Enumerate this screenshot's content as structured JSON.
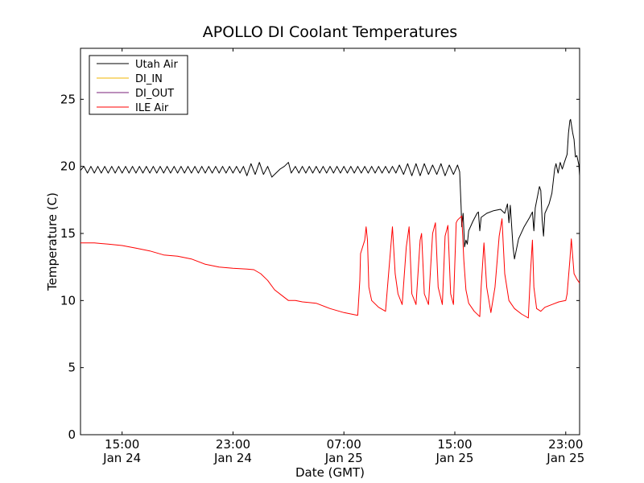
{
  "chart_data": {
    "type": "line",
    "title": "APOLLO DI Coolant Temperatures",
    "xlabel": "Date (GMT)",
    "ylabel": "Temperature (C)",
    "x_unit": "hours since Jan 24 12:00 GMT",
    "xlim": [
      0,
      36
    ],
    "ylim": [
      0,
      28.8
    ],
    "yticks": [
      0,
      5,
      10,
      15,
      20,
      25
    ],
    "xticks": [
      {
        "x": 3,
        "time": "15:00",
        "date": "Jan 24"
      },
      {
        "x": 11,
        "time": "23:00",
        "date": "Jan 24"
      },
      {
        "x": 19,
        "time": "07:00",
        "date": "Jan 25"
      },
      {
        "x": 27,
        "time": "15:00",
        "date": "Jan 25"
      },
      {
        "x": 35,
        "time": "23:00",
        "date": "Jan 25"
      }
    ],
    "legend_position": "top-left",
    "series": [
      {
        "name": "Utah Air",
        "color": "#000000",
        "points": [
          [
            0,
            19.7
          ],
          [
            0.25,
            20.0
          ],
          [
            0.5,
            19.5
          ],
          [
            0.75,
            20.0
          ],
          [
            1,
            19.5
          ],
          [
            1.25,
            20.0
          ],
          [
            1.5,
            19.5
          ],
          [
            1.75,
            20.0
          ],
          [
            2,
            19.5
          ],
          [
            2.25,
            20.0
          ],
          [
            2.5,
            19.5
          ],
          [
            2.75,
            20.0
          ],
          [
            3,
            19.5
          ],
          [
            3.25,
            20.0
          ],
          [
            3.5,
            19.5
          ],
          [
            3.75,
            20.0
          ],
          [
            4,
            19.5
          ],
          [
            4.25,
            20.0
          ],
          [
            4.5,
            19.5
          ],
          [
            4.75,
            20.0
          ],
          [
            5,
            19.5
          ],
          [
            5.25,
            20.0
          ],
          [
            5.5,
            19.5
          ],
          [
            5.75,
            20.0
          ],
          [
            6,
            19.5
          ],
          [
            6.25,
            20.0
          ],
          [
            6.5,
            19.5
          ],
          [
            6.75,
            20.0
          ],
          [
            7,
            19.5
          ],
          [
            7.25,
            20.0
          ],
          [
            7.5,
            19.5
          ],
          [
            7.75,
            20.0
          ],
          [
            8,
            19.5
          ],
          [
            8.25,
            20.0
          ],
          [
            8.5,
            19.5
          ],
          [
            8.75,
            20.0
          ],
          [
            9,
            19.5
          ],
          [
            9.25,
            20.0
          ],
          [
            9.5,
            19.5
          ],
          [
            9.75,
            20.0
          ],
          [
            10,
            19.5
          ],
          [
            10.25,
            20.0
          ],
          [
            10.5,
            19.5
          ],
          [
            10.75,
            20.0
          ],
          [
            11,
            19.5
          ],
          [
            11.25,
            20.0
          ],
          [
            11.5,
            19.5
          ],
          [
            11.75,
            20.0
          ],
          [
            12,
            19.3
          ],
          [
            12.3,
            20.2
          ],
          [
            12.6,
            19.4
          ],
          [
            12.9,
            20.3
          ],
          [
            13.2,
            19.4
          ],
          [
            13.5,
            20.0
          ],
          [
            13.8,
            19.2
          ],
          [
            14.1,
            19.5
          ],
          [
            14.4,
            19.8
          ],
          [
            14.7,
            20.0
          ],
          [
            15,
            20.3
          ],
          [
            15.2,
            19.5
          ],
          [
            15.5,
            20.0
          ],
          [
            15.75,
            19.5
          ],
          [
            16,
            20.0
          ],
          [
            16.25,
            19.5
          ],
          [
            16.5,
            20.0
          ],
          [
            16.75,
            19.5
          ],
          [
            17,
            20.0
          ],
          [
            17.25,
            19.5
          ],
          [
            17.5,
            20.0
          ],
          [
            17.75,
            19.5
          ],
          [
            18,
            20.0
          ],
          [
            18.25,
            19.5
          ],
          [
            18.5,
            20.0
          ],
          [
            18.75,
            19.5
          ],
          [
            19,
            20.0
          ],
          [
            19.25,
            19.5
          ],
          [
            19.5,
            20.0
          ],
          [
            19.75,
            19.5
          ],
          [
            20,
            20.0
          ],
          [
            20.25,
            19.5
          ],
          [
            20.5,
            20.0
          ],
          [
            20.75,
            19.5
          ],
          [
            21,
            20.0
          ],
          [
            21.25,
            19.5
          ],
          [
            21.5,
            20.0
          ],
          [
            21.75,
            19.5
          ],
          [
            22,
            20.0
          ],
          [
            22.25,
            19.5
          ],
          [
            22.5,
            20.0
          ],
          [
            22.75,
            19.5
          ],
          [
            23,
            20.1
          ],
          [
            23.3,
            19.4
          ],
          [
            23.6,
            20.2
          ],
          [
            23.9,
            19.3
          ],
          [
            24.2,
            20.2
          ],
          [
            24.5,
            19.3
          ],
          [
            24.8,
            20.2
          ],
          [
            25.1,
            19.4
          ],
          [
            25.4,
            20.1
          ],
          [
            25.7,
            19.4
          ],
          [
            26,
            20.2
          ],
          [
            26.3,
            19.3
          ],
          [
            26.6,
            20.1
          ],
          [
            26.9,
            19.4
          ],
          [
            27.2,
            20.1
          ],
          [
            27.35,
            19.6
          ],
          [
            27.45,
            17.0
          ],
          [
            27.5,
            15.5
          ],
          [
            27.6,
            16.5
          ],
          [
            27.7,
            14.0
          ],
          [
            27.8,
            14.5
          ],
          [
            27.9,
            14.2
          ],
          [
            28.0,
            15.2
          ],
          [
            28.3,
            15.9
          ],
          [
            28.6,
            16.5
          ],
          [
            28.7,
            16.6
          ],
          [
            28.8,
            15.2
          ],
          [
            28.9,
            16.2
          ],
          [
            29.3,
            16.5
          ],
          [
            29.8,
            16.7
          ],
          [
            30.3,
            16.8
          ],
          [
            30.6,
            16.5
          ],
          [
            30.8,
            17.2
          ],
          [
            30.9,
            15.8
          ],
          [
            31.0,
            17.1
          ],
          [
            31.2,
            14.0
          ],
          [
            31.3,
            13.1
          ],
          [
            31.6,
            14.6
          ],
          [
            32.0,
            15.5
          ],
          [
            32.4,
            16.2
          ],
          [
            32.6,
            16.6
          ],
          [
            32.7,
            15.2
          ],
          [
            32.8,
            16.9
          ],
          [
            33.1,
            18.5
          ],
          [
            33.2,
            18.2
          ],
          [
            33.3,
            16.0
          ],
          [
            33.4,
            14.8
          ],
          [
            33.5,
            16.5
          ],
          [
            33.8,
            17.2
          ],
          [
            34.0,
            18.0
          ],
          [
            34.2,
            19.8
          ],
          [
            34.3,
            20.2
          ],
          [
            34.45,
            19.5
          ],
          [
            34.6,
            20.3
          ],
          [
            34.75,
            19.8
          ],
          [
            34.9,
            20.3
          ],
          [
            35.1,
            20.9
          ],
          [
            35.2,
            22.5
          ],
          [
            35.3,
            23.4
          ],
          [
            35.35,
            23.5
          ],
          [
            35.5,
            22.5
          ],
          [
            35.6,
            22.0
          ],
          [
            35.7,
            20.7
          ],
          [
            35.8,
            20.8
          ],
          [
            35.95,
            20.1
          ],
          [
            36.0,
            19.3
          ]
        ]
      },
      {
        "name": "DI_IN",
        "color": "#f2b400",
        "points": []
      },
      {
        "name": "DI_OUT",
        "color": "#7a1f7a",
        "points": []
      },
      {
        "name": "ILE Air",
        "color": "#ff0000",
        "points": [
          [
            0,
            14.3
          ],
          [
            1,
            14.3
          ],
          [
            2,
            14.2
          ],
          [
            3,
            14.1
          ],
          [
            4,
            13.9
          ],
          [
            5,
            13.7
          ],
          [
            6,
            13.4
          ],
          [
            7,
            13.3
          ],
          [
            8,
            13.1
          ],
          [
            9,
            12.7
          ],
          [
            10,
            12.5
          ],
          [
            11,
            12.4
          ],
          [
            12,
            12.35
          ],
          [
            12.5,
            12.3
          ],
          [
            13,
            12.0
          ],
          [
            13.5,
            11.5
          ],
          [
            14,
            10.8
          ],
          [
            14.5,
            10.4
          ],
          [
            15,
            10.0
          ],
          [
            15.5,
            10.0
          ],
          [
            16,
            9.9
          ],
          [
            17,
            9.8
          ],
          [
            18,
            9.4
          ],
          [
            19,
            9.1
          ],
          [
            20,
            8.9
          ],
          [
            20.15,
            11.5
          ],
          [
            20.2,
            13.5
          ],
          [
            20.5,
            14.5
          ],
          [
            20.6,
            15.5
          ],
          [
            20.7,
            14.5
          ],
          [
            20.8,
            11.0
          ],
          [
            21.0,
            10.0
          ],
          [
            21.5,
            9.5
          ],
          [
            22.0,
            9.2
          ],
          [
            22.3,
            13.0
          ],
          [
            22.5,
            15.5
          ],
          [
            22.7,
            12.0
          ],
          [
            22.9,
            10.5
          ],
          [
            23.2,
            9.7
          ],
          [
            23.5,
            14.0
          ],
          [
            23.7,
            15.5
          ],
          [
            23.9,
            10.5
          ],
          [
            24.2,
            9.7
          ],
          [
            24.5,
            14.5
          ],
          [
            24.6,
            15.0
          ],
          [
            24.8,
            10.5
          ],
          [
            25.1,
            9.7
          ],
          [
            25.4,
            15.0
          ],
          [
            25.6,
            15.8
          ],
          [
            25.8,
            11.0
          ],
          [
            26.1,
            9.7
          ],
          [
            26.3,
            14.8
          ],
          [
            26.5,
            15.6
          ],
          [
            26.7,
            10.5
          ],
          [
            26.9,
            9.7
          ],
          [
            27.1,
            15.8
          ],
          [
            27.2,
            16.0
          ],
          [
            27.5,
            16.3
          ],
          [
            27.65,
            13.0
          ],
          [
            27.8,
            10.8
          ],
          [
            28.0,
            9.8
          ],
          [
            28.4,
            9.2
          ],
          [
            28.8,
            8.8
          ],
          [
            28.9,
            11.0
          ],
          [
            29.1,
            14.3
          ],
          [
            29.3,
            11.0
          ],
          [
            29.6,
            9.1
          ],
          [
            29.9,
            11.0
          ],
          [
            30.2,
            14.8
          ],
          [
            30.4,
            16.1
          ],
          [
            30.6,
            12.0
          ],
          [
            30.9,
            10.0
          ],
          [
            31.3,
            9.4
          ],
          [
            31.8,
            9.0
          ],
          [
            32.3,
            8.7
          ],
          [
            32.45,
            12.0
          ],
          [
            32.6,
            14.5
          ],
          [
            32.7,
            11.0
          ],
          [
            32.9,
            9.4
          ],
          [
            33.2,
            9.2
          ],
          [
            33.5,
            9.5
          ],
          [
            34.0,
            9.7
          ],
          [
            34.5,
            9.9
          ],
          [
            35.0,
            10.0
          ],
          [
            35.1,
            10.5
          ],
          [
            35.3,
            13.0
          ],
          [
            35.4,
            14.6
          ],
          [
            35.6,
            12.0
          ],
          [
            35.8,
            11.6
          ],
          [
            36.0,
            11.3
          ]
        ]
      }
    ]
  }
}
